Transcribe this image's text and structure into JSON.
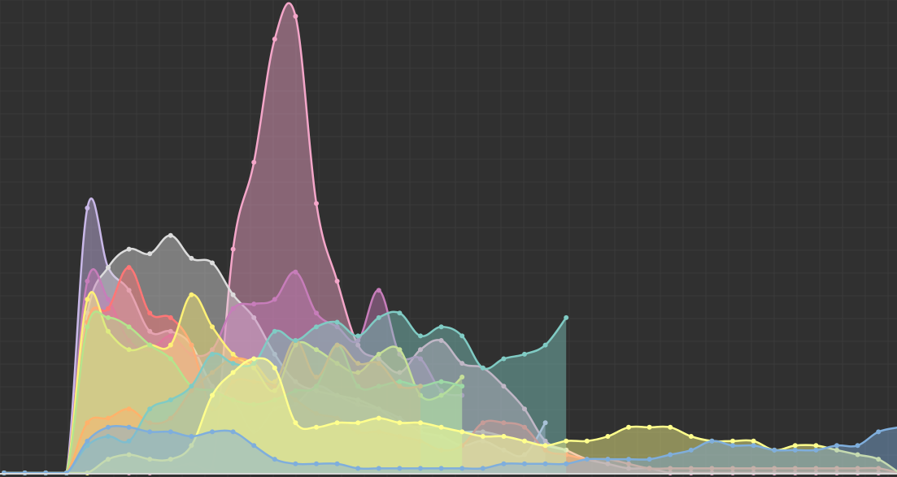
{
  "chart_data": {
    "type": "area",
    "title": "",
    "xlabel": "",
    "ylabel": "",
    "grid": true,
    "legend": "none",
    "x": [
      0,
      1,
      2,
      3,
      4,
      5,
      6,
      7,
      8,
      9,
      10,
      11,
      12,
      13,
      14,
      15,
      16,
      17,
      18,
      19,
      20,
      21,
      22,
      23,
      24,
      25,
      26,
      27,
      28,
      29,
      30,
      31,
      32,
      33,
      34,
      35,
      36,
      37,
      38,
      39,
      40,
      41,
      42,
      43
    ],
    "xlim": [
      0,
      43
    ],
    "ylim": [
      0,
      1
    ],
    "series": [
      {
        "color": "#f4a6c9",
        "values": [
          0,
          0,
          0,
          0,
          0.01,
          0.01,
          0,
          0,
          0.01,
          0.02,
          0.01,
          0.49,
          0.68,
          0.95,
          1.0,
          0.59,
          0.42,
          0.28,
          0.25,
          0.22,
          0.27,
          0.29,
          0.24,
          0.23,
          0.19,
          0.14,
          0.07,
          0.05,
          0.03,
          0.02,
          0.01,
          0.01,
          0,
          0,
          0,
          0,
          0,
          0,
          0,
          0,
          0,
          0,
          0,
          0
        ]
      },
      {
        "color": "#c9b8e8",
        "values": [
          0,
          0,
          0,
          0,
          0.58,
          0.45,
          0.4,
          0.31,
          0.31,
          0.28,
          0.19,
          0.16,
          0.09,
          0.14,
          0.15,
          0.19,
          0.17,
          0.15,
          0.14,
          0.12,
          0.09,
          0.08,
          0.06,
          0.07,
          0.05,
          0.04,
          0.11,
          null,
          null,
          null,
          null,
          null,
          null,
          null,
          null,
          null,
          null,
          null,
          null,
          null,
          null,
          null,
          null,
          null
        ]
      },
      {
        "color": "#dcdcdc",
        "values": [
          0,
          0,
          0,
          0,
          0.35,
          0.45,
          0.49,
          0.48,
          0.52,
          0.47,
          0.46,
          0.39,
          0.34,
          0.26,
          0.2,
          0.18,
          0.17,
          0.16,
          0.14,
          0.11,
          0.1,
          0.1,
          0.09,
          0.09,
          0.08,
          0.07,
          0.06,
          0.05,
          null,
          null,
          null,
          null,
          null,
          null,
          null,
          null,
          null,
          null,
          null,
          null,
          null,
          null,
          null,
          null
        ]
      },
      {
        "color": "#c77dba",
        "values": [
          0,
          0,
          0,
          0,
          0.42,
          0.38,
          0.29,
          0.27,
          0.3,
          0.26,
          0.27,
          0.36,
          0.37,
          0.38,
          0.44,
          0.35,
          0.32,
          0.29,
          0.4,
          0.26,
          0.25,
          0.18,
          0.17,
          null,
          null,
          null,
          null,
          null,
          null,
          null,
          null,
          null,
          null,
          null,
          null,
          null,
          null,
          null,
          null,
          null,
          null,
          null,
          null,
          null
        ]
      },
      {
        "color": "#ff7676",
        "values": [
          0,
          0,
          0,
          0,
          0.33,
          0.36,
          0.45,
          0.35,
          0.34,
          0.28,
          0.14,
          0.2,
          0.2,
          0.19,
          0.16,
          0.13,
          0.12,
          0.09,
          0.09,
          0.08,
          0.07,
          0.05,
          0.06,
          0.11,
          0.11,
          0.1,
          0.05,
          0.04,
          0.03,
          0.03,
          0.02,
          0.01,
          0.01,
          0.01,
          0.01,
          0.01,
          0.01,
          0.01,
          0.01,
          0.01,
          0.01,
          0.01,
          0.01,
          0
        ]
      },
      {
        "color": "#fff176",
        "values": [
          0,
          0,
          0,
          0,
          0.38,
          0.31,
          0.27,
          0.28,
          0.28,
          0.39,
          0.32,
          0.26,
          0.23,
          0.18,
          0.28,
          0.27,
          0.24,
          0.22,
          0.26,
          0.27,
          0.17,
          0.17,
          0.21,
          null,
          null,
          null,
          null,
          null,
          null,
          null,
          null,
          null,
          null,
          null,
          null,
          null,
          null,
          null,
          null,
          null,
          null,
          null,
          null,
          null
        ]
      },
      {
        "color": "#b5e48c",
        "values": [
          0,
          0,
          0,
          0,
          0.32,
          0.34,
          0.32,
          0.28,
          0.25,
          0.19,
          0.18,
          0.16,
          0.15,
          0.16,
          0.18,
          0.19,
          0.28,
          0.19,
          0.19,
          0.2,
          0.19,
          0.2,
          0.19,
          null,
          null,
          null,
          null,
          null,
          null,
          null,
          null,
          null,
          null,
          null,
          null,
          null,
          null,
          null,
          null,
          null,
          null,
          null,
          null,
          null
        ]
      },
      {
        "color": "#ffb26b",
        "values": [
          0,
          0,
          0,
          0,
          0.11,
          0.12,
          0.14,
          0.11,
          0.12,
          0.18,
          0.22,
          0.25,
          0.24,
          0.2,
          0.29,
          0.21,
          0.28,
          0.24,
          0.24,
          0.19,
          0.19,
          null,
          null,
          null,
          null,
          null,
          null,
          null,
          null,
          null,
          null,
          null,
          null,
          null,
          null,
          null,
          null,
          null,
          null,
          null,
          null,
          null,
          null,
          null
        ]
      },
      {
        "color": "#80cbc4",
        "values": [
          0,
          0,
          0,
          0,
          0.06,
          0.08,
          0.07,
          0.14,
          0.16,
          0.19,
          0.26,
          0.24,
          0.24,
          0.31,
          0.29,
          0.32,
          0.33,
          0.3,
          0.34,
          0.35,
          0.3,
          0.32,
          0.3,
          0.23,
          0.25,
          0.26,
          0.28,
          0.34,
          null,
          null,
          null,
          null,
          null,
          null,
          null,
          null,
          null,
          null,
          null,
          null,
          null,
          null,
          null,
          null
        ]
      },
      {
        "color": "#80cbc4",
        "values": [
          0,
          0,
          0,
          0,
          null,
          null,
          null,
          null,
          null,
          null,
          null,
          null,
          null,
          null,
          null,
          null,
          null,
          null,
          null,
          null,
          null,
          null,
          null,
          null,
          null,
          null,
          null,
          null,
          null,
          null,
          null,
          null,
          null,
          null,
          null,
          null,
          null,
          null,
          null,
          null,
          null,
          null,
          null,
          null
        ]
      },
      {
        "color": "#ffff8d",
        "values": [
          0,
          0,
          0,
          0,
          0,
          0.03,
          0.04,
          0.03,
          0.03,
          0.06,
          0.17,
          0.22,
          0.25,
          0.23,
          0.11,
          0.1,
          0.11,
          0.11,
          0.12,
          0.11,
          0.11,
          0.1,
          0.09,
          0.08,
          0.08,
          0.07,
          0.06,
          0.07,
          0.07,
          0.08,
          0.1,
          0.1,
          0.1,
          0.08,
          0.07,
          0.07,
          0.07,
          0.05,
          0.06,
          0.06,
          0.05,
          0.04,
          0.03,
          0
        ]
      },
      {
        "color": "#7faedc",
        "values": [
          0,
          0,
          0,
          0,
          0.07,
          0.1,
          0.1,
          0.09,
          0.09,
          0.08,
          0.09,
          0.09,
          0.06,
          0.03,
          0.02,
          0.02,
          0.02,
          0.01,
          0.01,
          0.01,
          0.01,
          0.01,
          0.01,
          0.01,
          0.02,
          0.02,
          0.02,
          0.02,
          0.03,
          0.03,
          0.03,
          0.03,
          0.04,
          0.05,
          0.07,
          0.06,
          0.06,
          0.05,
          0.05,
          0.05,
          0.06,
          0.06,
          0.09,
          0.1
        ]
      }
    ]
  }
}
